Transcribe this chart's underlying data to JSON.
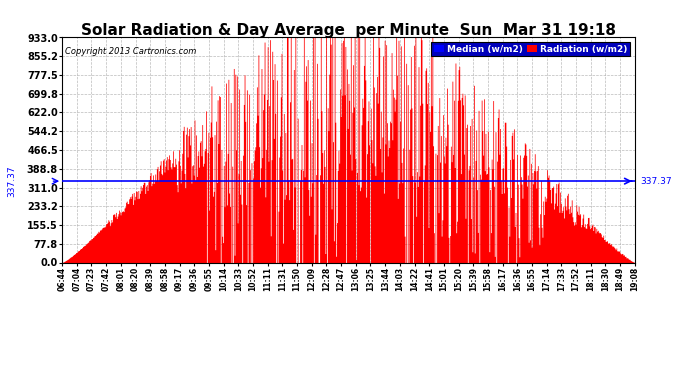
{
  "title": "Solar Radiation & Day Average  per Minute  Sun  Mar 31 19:18",
  "copyright": "Copyright 2013 Cartronics.com",
  "ytick_values": [
    0.0,
    77.8,
    155.5,
    233.2,
    311.0,
    388.8,
    466.5,
    544.2,
    622.0,
    699.8,
    777.5,
    855.2,
    933.0
  ],
  "ylim": [
    0.0,
    933.0
  ],
  "median_value": 337.37,
  "median_label": "337.37",
  "legend_median_label": "Median (w/m2)",
  "legend_radiation_label": "Radiation (w/m2)",
  "median_color": "#0000ff",
  "radiation_color": "#ff0000",
  "background_color": "#ffffff",
  "grid_color": "#aaaaaa",
  "title_fontsize": 11,
  "xtick_labels": [
    "06:44",
    "07:04",
    "07:23",
    "07:42",
    "08:01",
    "08:20",
    "08:39",
    "08:58",
    "09:17",
    "09:36",
    "09:55",
    "10:14",
    "10:33",
    "10:52",
    "11:11",
    "11:31",
    "11:50",
    "12:09",
    "12:28",
    "12:47",
    "13:06",
    "13:25",
    "13:44",
    "14:03",
    "14:22",
    "14:41",
    "15:01",
    "15:20",
    "15:39",
    "15:58",
    "16:17",
    "16:36",
    "16:55",
    "17:14",
    "17:33",
    "17:52",
    "18:11",
    "18:30",
    "18:49",
    "19:08"
  ]
}
